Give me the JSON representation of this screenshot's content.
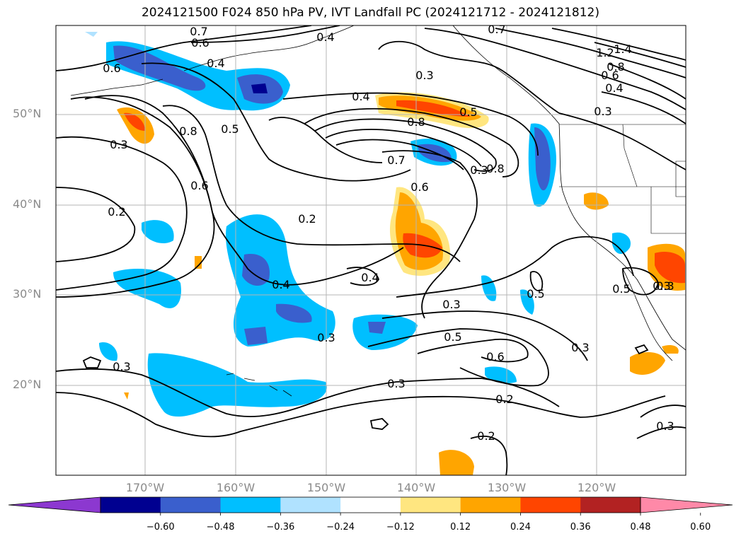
{
  "title": "2024121500 F024 850 hPa PV, IVT Landfall PC (2024121712 - 2024121812)",
  "map": {
    "lat_labels": [
      "50°N",
      "40°N",
      "30°N",
      "20°N"
    ],
    "lon_labels": [
      "170°W",
      "160°W",
      "150°W",
      "140°W",
      "130°W",
      "120°W"
    ],
    "contour_labels": [
      "0.7",
      "0.6",
      "0.4",
      "0.7",
      "1.4",
      "1.2",
      "0.8",
      "0.6",
      "0.4",
      "0.3",
      "0.3",
      "0.4",
      "0.6",
      "0.4",
      "0.5",
      "0.8",
      "0.8",
      "0.3",
      "0.5",
      "0.7",
      "0.8",
      "0.6",
      "0.3",
      "0.6",
      "0.2",
      "0.2",
      "0.4",
      "0.4",
      "0.3",
      "0.3",
      "0.5",
      "0.5",
      "0.5",
      "0.3",
      "0.3",
      "0.6",
      "0.3",
      "0.3",
      "0.2",
      "0.3",
      "0.2",
      "0.3"
    ]
  },
  "colorbar": {
    "colors": [
      "#8c38d0",
      "#000090",
      "#3a5fcd",
      "#00bfff",
      "#b0e2ff",
      "#ffffff",
      "#ffe680",
      "#ffa500",
      "#ff4500",
      "#b22222",
      "#ff89a8"
    ],
    "ticks": [
      "−0.60",
      "−0.48",
      "−0.36",
      "−0.24",
      "−0.12",
      "0.12",
      "0.24",
      "0.36",
      "0.48",
      "0.60"
    ]
  }
}
